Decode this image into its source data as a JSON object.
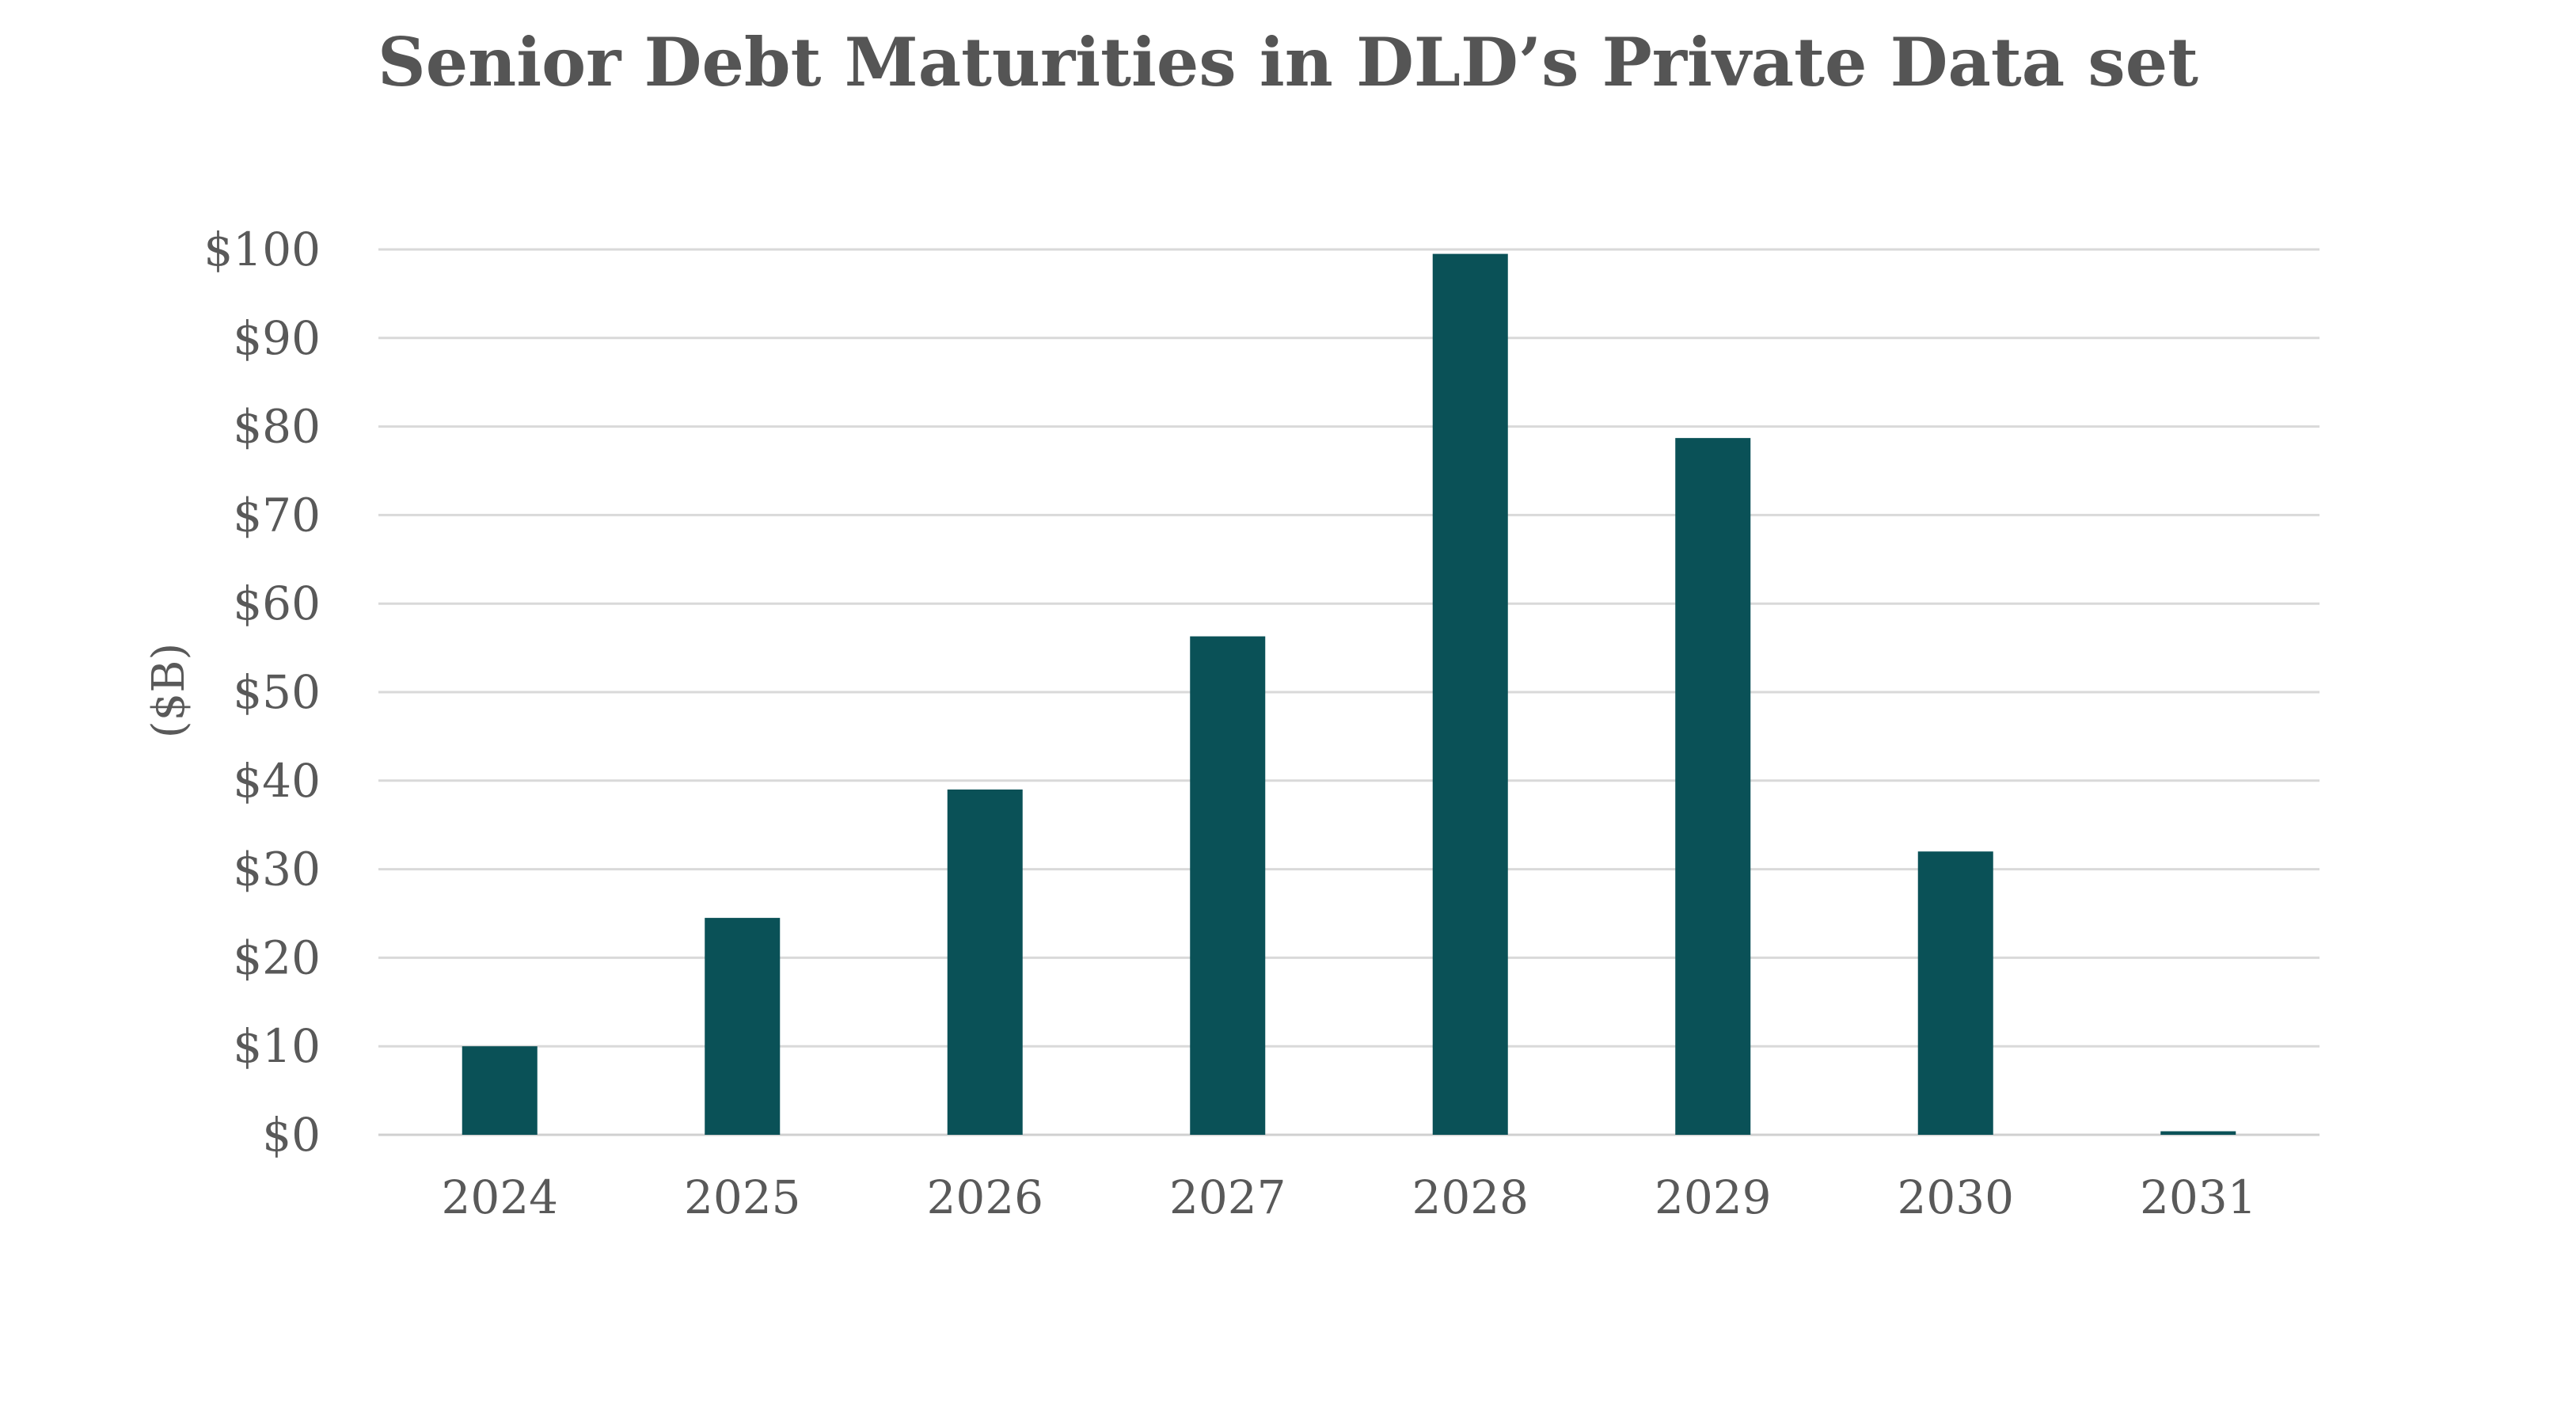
{
  "chart_data": {
    "type": "bar",
    "title": "Senior Debt Maturities in DLD’s Private Data set",
    "xlabel": "",
    "ylabel": "($B)",
    "categories": [
      "2024",
      "2025",
      "2026",
      "2027",
      "2028",
      "2029",
      "2030",
      "2031"
    ],
    "values": [
      10,
      24.5,
      39,
      56.3,
      99.5,
      78.7,
      32,
      0.4
    ],
    "ylim": [
      0,
      100
    ],
    "yticks": [
      0,
      10,
      20,
      30,
      40,
      50,
      60,
      70,
      80,
      90,
      100
    ],
    "ytick_labels": [
      "$0",
      "$10",
      "$20",
      "$30",
      "$40",
      "$50",
      "$60",
      "$70",
      "$80",
      "$90",
      "$100"
    ],
    "grid": true,
    "legend": "none",
    "colors": {
      "bar": "#0a5157",
      "title": "#555555",
      "text": "#595959",
      "grid": "#d9d9d9"
    }
  }
}
